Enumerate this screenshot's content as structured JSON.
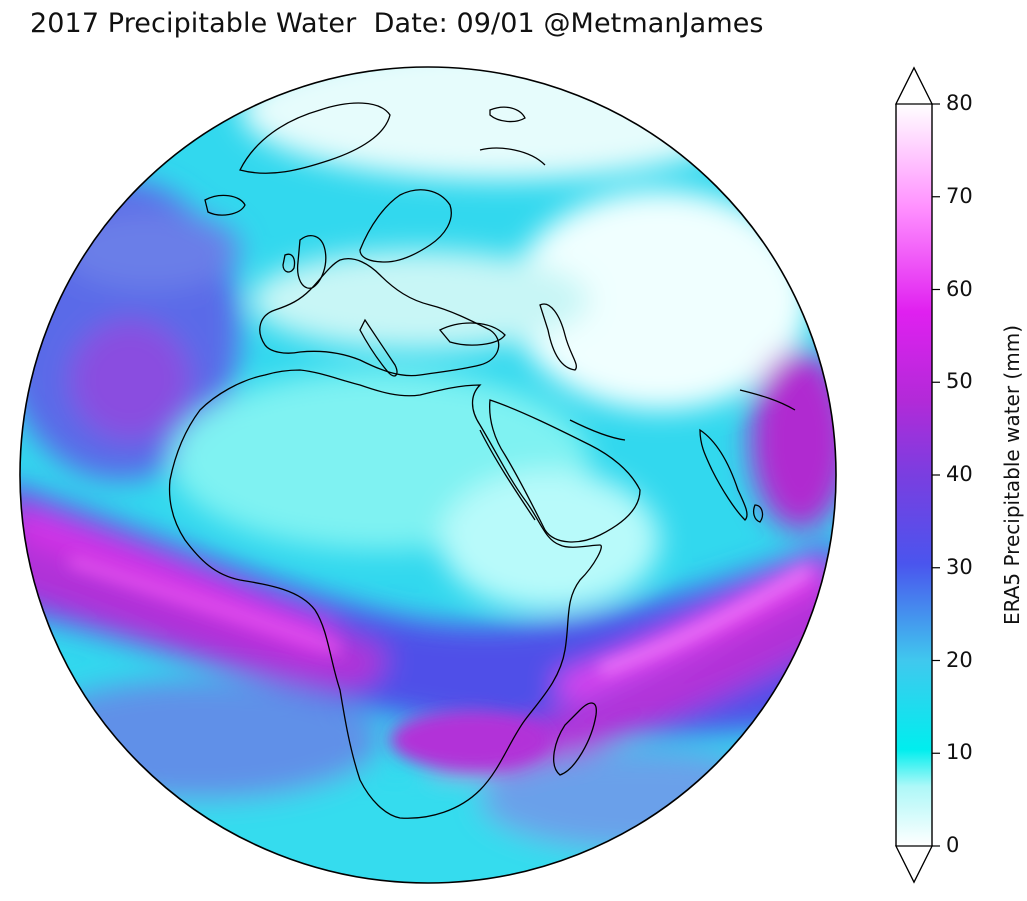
{
  "title": "2017 Precipitable Water  Date: 09/01 @MetmanJames",
  "colorbar": {
    "label": "ERA5 Precipitable water (mm)",
    "ticks": [
      "0",
      "10",
      "20",
      "30",
      "40",
      "50",
      "60",
      "70",
      "80"
    ],
    "range": [
      0,
      80
    ],
    "extend": "both",
    "colors": [
      "#ffffff",
      "#00eeee",
      "#40c8ee",
      "#4a55ee",
      "#a030d0",
      "#e020e8",
      "#ffb0ff",
      "#ffffff"
    ]
  },
  "map": {
    "projection": "orthographic",
    "center": "Africa / Europe",
    "variable": "precipitable water"
  }
}
